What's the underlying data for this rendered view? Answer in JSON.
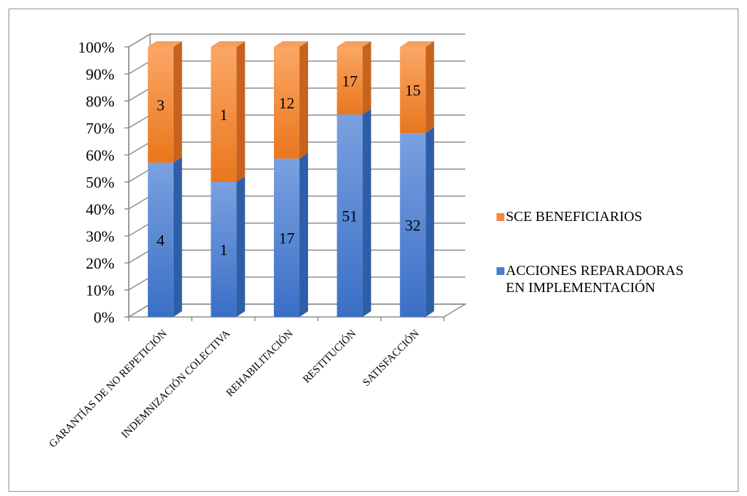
{
  "chart_data": {
    "type": "bar",
    "stacked": true,
    "percent_stacked": true,
    "three_d": true,
    "categories": [
      "GARANTÍAS DE NO REPETICIÓN",
      "INDEMNIZACIÓN COLECTIVA",
      "REHABILITACIÓN",
      "RESTITUCIÓN",
      "SATISFACCIÓN"
    ],
    "series": [
      {
        "name": "ACCIONES REPARADORAS EN IMPLEMENTACIÓN",
        "values": [
          4,
          1,
          17,
          51,
          32
        ],
        "color": "#4a7fd0"
      },
      {
        "name": "SCE BENEFICIARIOS",
        "values": [
          3,
          1,
          12,
          17,
          15
        ],
        "color": "#f5893a"
      }
    ],
    "yticks": [
      "0%",
      "10%",
      "20%",
      "30%",
      "40%",
      "50%",
      "60%",
      "70%",
      "80%",
      "90%",
      "100%"
    ],
    "ylim": [
      0,
      100
    ],
    "grid": true,
    "legend": {
      "position": "right",
      "items": [
        {
          "lines": [
            "SCE BENEFICIARIOS"
          ],
          "color": "#f5893a"
        },
        {
          "lines": [
            "ACCIONES REPARADORAS",
            "EN IMPLEMENTACIÓN"
          ],
          "color": "#4a7fd0"
        }
      ]
    },
    "title_fragment_color": "#2f6fb0"
  }
}
